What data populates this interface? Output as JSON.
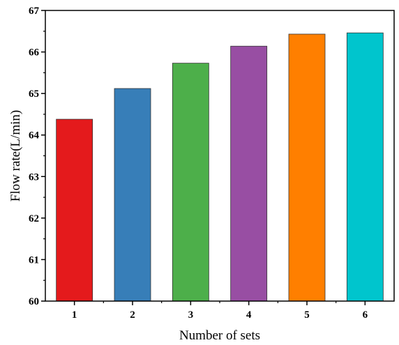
{
  "chart_data": {
    "type": "bar",
    "categories": [
      "1",
      "2",
      "3",
      "4",
      "5",
      "6"
    ],
    "values": [
      64.38,
      65.12,
      65.73,
      66.14,
      66.43,
      66.46
    ],
    "colors": [
      "#E41A1C",
      "#377EB8",
      "#4DAF4A",
      "#984EA3",
      "#FF7F00",
      "#00C5CD"
    ],
    "title": "",
    "xlabel": "Number of sets",
    "ylabel": "Flow rate(L/min)",
    "ylim": [
      60,
      67
    ],
    "yticks": [
      "60",
      "61",
      "62",
      "63",
      "64",
      "65",
      "66",
      "67"
    ],
    "grid": false,
    "legend": "none"
  }
}
